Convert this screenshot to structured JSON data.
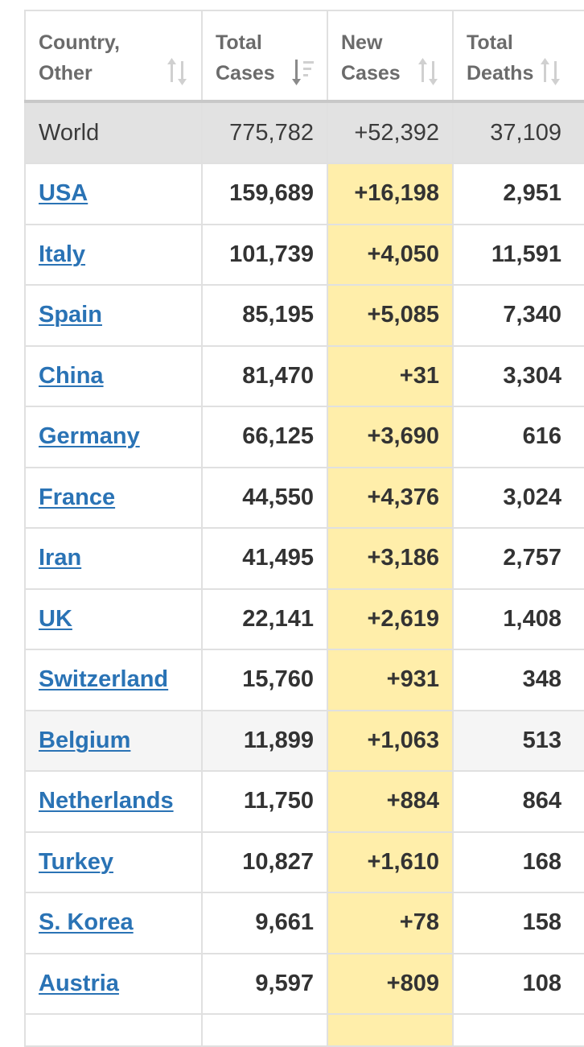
{
  "header": {
    "country_line1": "Country,",
    "country_line2": "Other",
    "total_cases_line1": "Total",
    "total_cases_line2": "Cases",
    "new_cases_line1": "New",
    "new_cases_line2": "Cases",
    "total_deaths_line1": "Total",
    "total_deaths_line2": "Deaths"
  },
  "world": {
    "country": "World",
    "total_cases": "775,782",
    "new_cases": "+52,392",
    "total_deaths": "37,109"
  },
  "rows": [
    {
      "country": "USA",
      "total_cases": "159,689",
      "new_cases": "+16,198",
      "total_deaths": "2,951"
    },
    {
      "country": "Italy",
      "total_cases": "101,739",
      "new_cases": "+4,050",
      "total_deaths": "11,591"
    },
    {
      "country": "Spain",
      "total_cases": "85,195",
      "new_cases": "+5,085",
      "total_deaths": "7,340"
    },
    {
      "country": "China",
      "total_cases": "81,470",
      "new_cases": "+31",
      "total_deaths": "3,304"
    },
    {
      "country": "Germany",
      "total_cases": "66,125",
      "new_cases": "+3,690",
      "total_deaths": "616"
    },
    {
      "country": "France",
      "total_cases": "44,550",
      "new_cases": "+4,376",
      "total_deaths": "3,024"
    },
    {
      "country": "Iran",
      "total_cases": "41,495",
      "new_cases": "+3,186",
      "total_deaths": "2,757"
    },
    {
      "country": "UK",
      "total_cases": "22,141",
      "new_cases": "+2,619",
      "total_deaths": "1,408"
    },
    {
      "country": "Switzerland",
      "total_cases": "15,760",
      "new_cases": "+931",
      "total_deaths": "348"
    },
    {
      "country": "Belgium",
      "total_cases": "11,899",
      "new_cases": "+1,063",
      "total_deaths": "513"
    },
    {
      "country": "Netherlands",
      "total_cases": "11,750",
      "new_cases": "+884",
      "total_deaths": "864"
    },
    {
      "country": "Turkey",
      "total_cases": "10,827",
      "new_cases": "+1,610",
      "total_deaths": "168"
    },
    {
      "country": "S. Korea",
      "total_cases": "9,661",
      "new_cases": "+78",
      "total_deaths": "158"
    },
    {
      "country": "Austria",
      "total_cases": "9,597",
      "new_cases": "+809",
      "total_deaths": "108"
    }
  ],
  "colors": {
    "link": "#2a73b5",
    "new_cases_highlight": "#ffeeaa",
    "world_row_bg": "#e2e2e2",
    "alt_row_bg": "#f5f5f5",
    "header_text": "#6b6b6b",
    "sort_icon_inactive": "#d0d0d0",
    "sort_icon_active": "#8a8a8a"
  },
  "icons": {
    "country_sort": "sort-arrows-icon",
    "total_cases_sort": "sort-descending-icon",
    "new_cases_sort": "sort-arrows-icon",
    "total_deaths_sort": "sort-arrows-icon"
  }
}
